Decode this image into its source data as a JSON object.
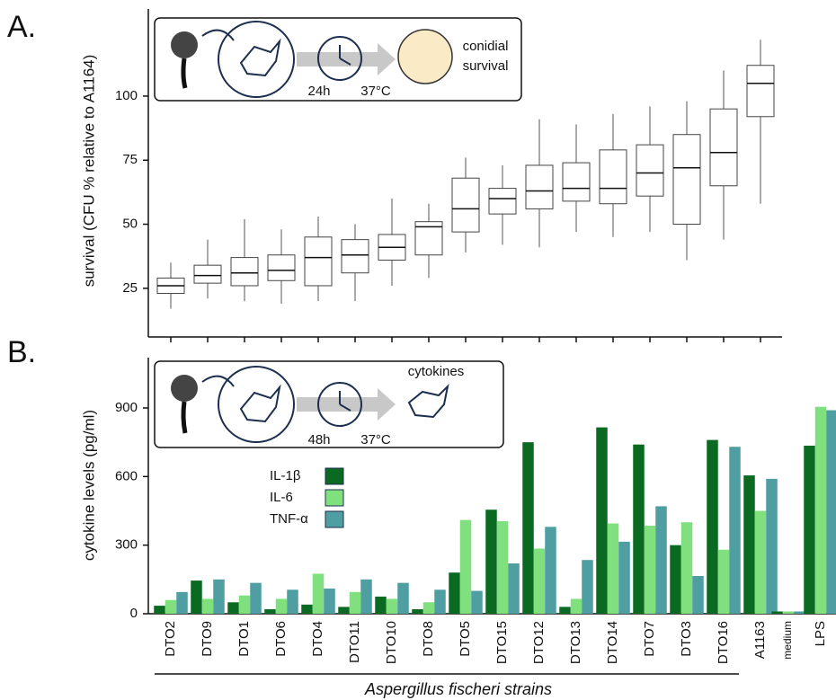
{
  "panel_labels": [
    "A.",
    "B."
  ],
  "insets": [
    {
      "texts": [
        "24h",
        "37°C",
        "conidial",
        "survival"
      ]
    },
    {
      "texts": [
        "cytokines",
        "48h",
        "37°C"
      ]
    }
  ],
  "chart_data": [
    {
      "type": "box",
      "y_label": "survival (CFU % relative to A1164)",
      "ylim": [
        6,
        134
      ],
      "yticks": [
        25,
        50,
        75,
        100
      ],
      "boxes": [
        {
          "low": 17,
          "q1": 23,
          "median": 26,
          "q3": 29,
          "high": 35
        },
        {
          "low": 21,
          "q1": 27,
          "median": 30,
          "q3": 34,
          "high": 44
        },
        {
          "low": 20,
          "q1": 26,
          "median": 31,
          "q3": 37,
          "high": 52
        },
        {
          "low": 19,
          "q1": 28,
          "median": 32,
          "q3": 38,
          "high": 48
        },
        {
          "low": 20,
          "q1": 26,
          "median": 37,
          "q3": 45,
          "high": 53
        },
        {
          "low": 20,
          "q1": 31,
          "median": 38,
          "q3": 44,
          "high": 50
        },
        {
          "low": 26,
          "q1": 36,
          "median": 41,
          "q3": 46,
          "high": 60
        },
        {
          "low": 29,
          "q1": 38,
          "median": 49,
          "q3": 51,
          "high": 58
        },
        {
          "low": 39,
          "q1": 47,
          "median": 56,
          "q3": 68,
          "high": 76
        },
        {
          "low": 42,
          "q1": 54,
          "median": 60,
          "q3": 64,
          "high": 73
        },
        {
          "low": 41,
          "q1": 56,
          "median": 63,
          "q3": 73,
          "high": 91
        },
        {
          "low": 47,
          "q1": 59,
          "median": 64,
          "q3": 74,
          "high": 89
        },
        {
          "low": 45,
          "q1": 58,
          "median": 64,
          "q3": 79,
          "high": 93
        },
        {
          "low": 47,
          "q1": 61,
          "median": 70,
          "q3": 81,
          "high": 96
        },
        {
          "low": 36,
          "q1": 50,
          "median": 72,
          "q3": 85,
          "high": 98
        },
        {
          "low": 44,
          "q1": 65,
          "median": 78,
          "q3": 95,
          "high": 110
        },
        {
          "low": 58,
          "q1": 92,
          "median": 105,
          "q3": 112,
          "high": 122
        }
      ]
    },
    {
      "type": "bar",
      "y_label": "cytokine levels (pg/ml)",
      "x_label": "Aspergillus fischeri strains",
      "ylim": [
        0,
        1120
      ],
      "yticks": [
        0,
        300,
        600,
        900
      ],
      "categories": [
        "DTO2",
        "DTO9",
        "DTO1",
        "DTO6",
        "DTO4",
        "DTO11",
        "DTO10",
        "DTO8",
        "DTO5",
        "DTO15",
        "DTO12",
        "DTO13",
        "DTO14",
        "DTO7",
        "DTO3",
        "DTO16",
        "A1163",
        "medium",
        "LPS"
      ],
      "series": [
        {
          "name": "IL-1β",
          "color": "#0b6a22",
          "values": [
            35,
            145,
            50,
            20,
            40,
            30,
            75,
            20,
            180,
            455,
            750,
            30,
            815,
            740,
            300,
            760,
            605,
            10,
            735
          ]
        },
        {
          "name": "IL-6",
          "color": "#80e07e",
          "values": [
            60,
            65,
            80,
            65,
            175,
            95,
            65,
            50,
            410,
            405,
            285,
            65,
            395,
            385,
            400,
            280,
            450,
            10,
            905
          ]
        },
        {
          "name": "TNF-α",
          "color": "#4f9ea2",
          "values": [
            95,
            150,
            135,
            105,
            110,
            150,
            135,
            105,
            100,
            220,
            380,
            235,
            315,
            470,
            165,
            730,
            590,
            10,
            890
          ]
        }
      ]
    }
  ]
}
